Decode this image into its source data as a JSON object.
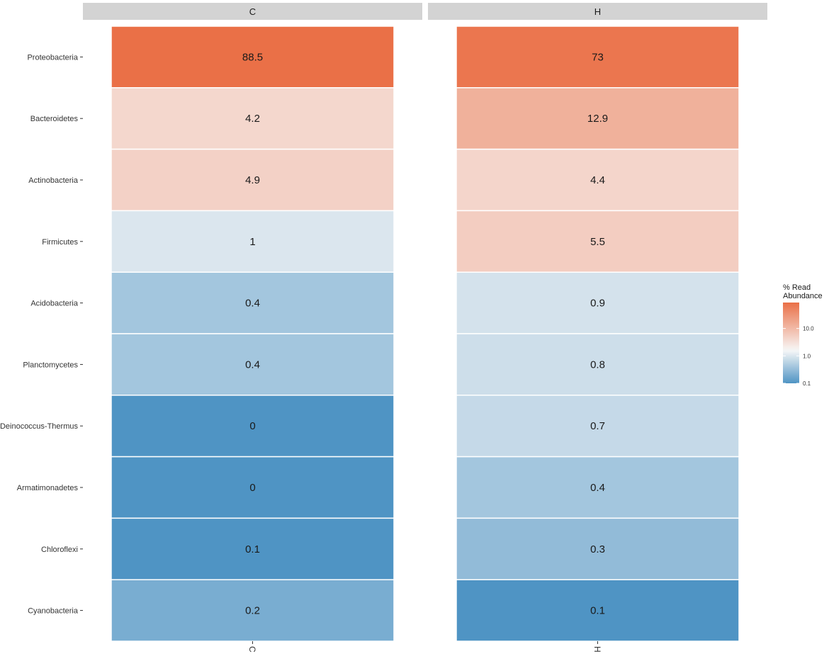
{
  "chart_data": {
    "type": "heatmap",
    "facets": [
      "C",
      "H"
    ],
    "x_categories": [
      "C",
      "H"
    ],
    "y_categories": [
      "Proteobacteria",
      "Bacteroidetes",
      "Actinobacteria",
      "Firmicutes",
      "Acidobacteria",
      "Planctomycetes",
      "Deinococcus-Thermus",
      "Armatimonadetes",
      "Chloroflexi",
      "Cyanobacteria"
    ],
    "values": {
      "C": [
        88.5,
        4.2,
        4.9,
        1,
        0.4,
        0.4,
        0,
        0,
        0.1,
        0.2
      ],
      "H": [
        73,
        12.9,
        4.4,
        5.5,
        0.9,
        0.8,
        0.7,
        0.4,
        0.3,
        0.1
      ]
    },
    "labels": {
      "C": [
        "88.5",
        "4.2",
        "4.9",
        "1",
        "0.4",
        "0.4",
        "0",
        "0",
        "0.1",
        "0.2"
      ],
      "H": [
        "73",
        "12.9",
        "4.4",
        "5.5",
        "0.9",
        "0.8",
        "0.7",
        "0.4",
        "0.3",
        "0.1"
      ]
    },
    "color_scale": {
      "type": "log10",
      "low_color": "#4f94c4",
      "mid_color": "#f7f7f7",
      "high_color": "#ea7047",
      "midpoint": 1.6,
      "domain": [
        0.1,
        88.5
      ]
    },
    "legend": {
      "title_line1": "% Read",
      "title_line2": "Abundance",
      "ticks": [
        {
          "value": 10,
          "label": "10.0"
        },
        {
          "value": 1,
          "label": "1.0"
        },
        {
          "value": 0.1,
          "label": "0.1"
        }
      ],
      "placement": "right"
    },
    "strip_color": "#d3d3d3"
  }
}
